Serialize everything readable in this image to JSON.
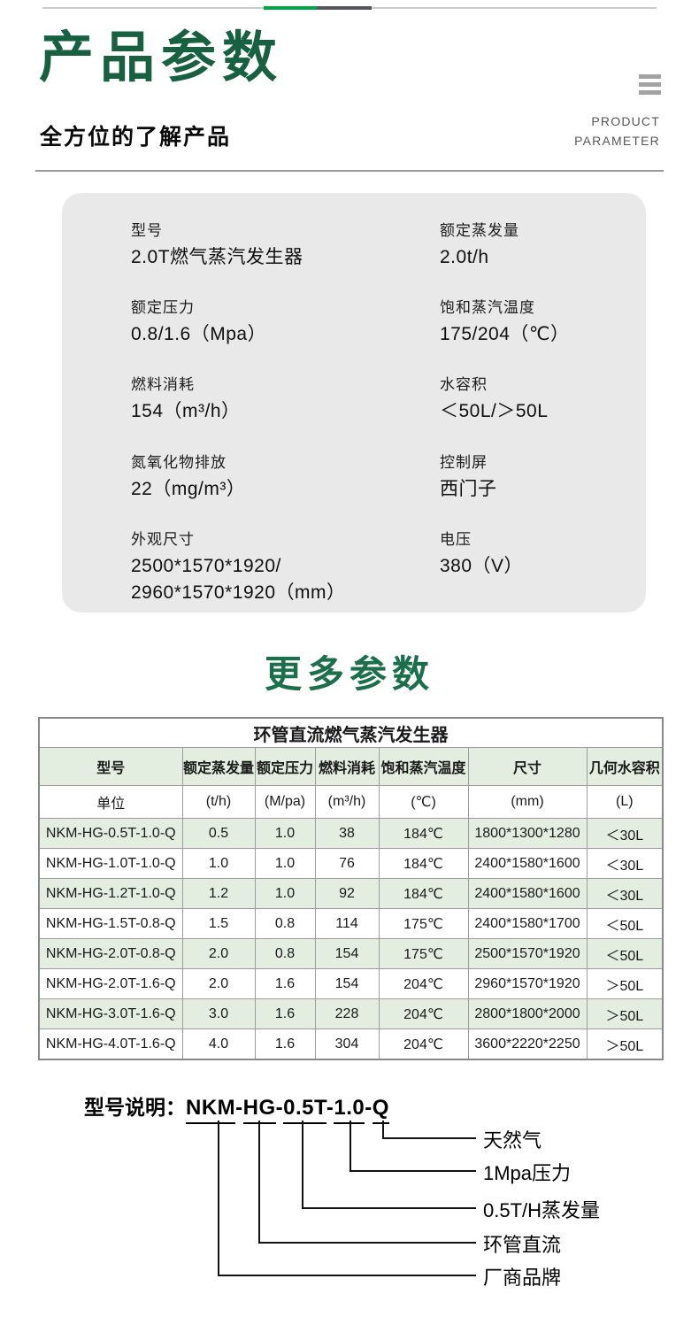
{
  "header": {
    "title": "产品参数",
    "subtitle": "全方位的了解产品",
    "corner_line1": "PRODUCT",
    "corner_line2": "PARAMETER"
  },
  "spec_box": {
    "items": [
      {
        "label": "型号",
        "value": "2.0T燃气蒸汽发生器"
      },
      {
        "label": "额定蒸发量",
        "value": "2.0t/h"
      },
      {
        "label": "额定压力",
        "value": "0.8/1.6（Mpa）"
      },
      {
        "label": "饱和蒸汽温度",
        "value": "175/204（℃）"
      },
      {
        "label": "燃料消耗",
        "value": "154（m³/h）"
      },
      {
        "label": "水容积",
        "value": "＜50L/＞50L"
      },
      {
        "label": "氮氧化物排放",
        "value": "22（mg/m³）"
      },
      {
        "label": "控制屏",
        "value": "西门子"
      },
      {
        "label": "外观尺寸",
        "value": "2500*1570*1920/\n2960*1570*1920（mm）"
      },
      {
        "label": "电压",
        "value": "380（V）"
      }
    ]
  },
  "more_title": "更多参数",
  "table": {
    "title": "环管直流燃气蒸汽发生器",
    "columns": [
      "型号",
      "额定蒸发量",
      "额定压力",
      "燃料消耗",
      "饱和蒸汽温度",
      "尺寸",
      "几何水容积"
    ],
    "units": [
      "单位",
      "(t/h)",
      "(M/pa)",
      "(m³/h)",
      "(℃)",
      "(mm)",
      "(L)"
    ],
    "rows": [
      [
        "NKM-HG-0.5T-1.0-Q",
        "0.5",
        "1.0",
        "38",
        "184℃",
        "1800*1300*1280",
        "＜30L"
      ],
      [
        "NKM-HG-1.0T-1.0-Q",
        "1.0",
        "1.0",
        "76",
        "184℃",
        "2400*1580*1600",
        "＜30L"
      ],
      [
        "NKM-HG-1.2T-1.0-Q",
        "1.2",
        "1.0",
        "92",
        "184℃",
        "2400*1580*1600",
        "＜30L"
      ],
      [
        "NKM-HG-1.5T-0.8-Q",
        "1.5",
        "0.8",
        "114",
        "175℃",
        "2400*1580*1700",
        "＜50L"
      ],
      [
        "NKM-HG-2.0T-0.8-Q",
        "2.0",
        "0.8",
        "154",
        "175℃",
        "2500*1570*1920",
        "＜50L"
      ],
      [
        "NKM-HG-2.0T-1.6-Q",
        "2.0",
        "1.6",
        "154",
        "204℃",
        "2960*1570*1920",
        "＞50L"
      ],
      [
        "NKM-HG-3.0T-1.6-Q",
        "3.0",
        "1.6",
        "228",
        "204℃",
        "2800*1800*2000",
        "＞50L"
      ],
      [
        "NKM-HG-4.0T-1.6-Q",
        "4.0",
        "1.6",
        "304",
        "204℃",
        "3600*2220*2250",
        "＞50L"
      ]
    ]
  },
  "model_legend": {
    "label": "型号说明：",
    "segments": [
      "NKM",
      "HG",
      "0.5T",
      "1.0",
      "Q"
    ],
    "separator": "-",
    "callouts": [
      "天然气",
      "1Mpa压力",
      "0.5T/H蒸发量",
      "环管直流",
      "厂商品牌"
    ]
  },
  "colors": {
    "brand_green_dark": "#176140",
    "heading_green": "#1b6f4a",
    "accent_green": "#00a845",
    "accent_dark": "#55565a",
    "table_row_green": "#e4eee0",
    "spec_box_gray": "#e9e9e9"
  }
}
